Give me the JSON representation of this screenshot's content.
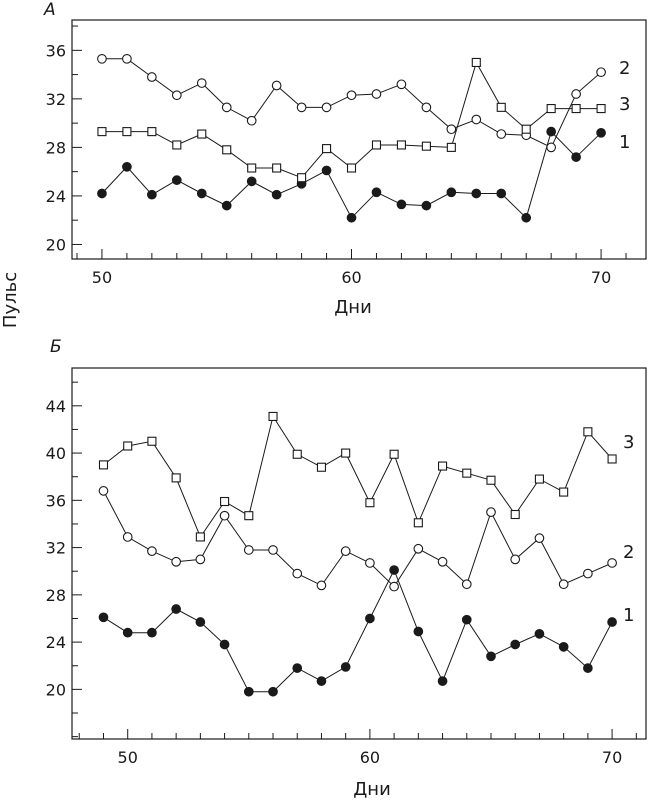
{
  "ylabel": "Пульс",
  "chart_data": [
    {
      "type": "line",
      "panel_label": "А",
      "xlabel": "Дни",
      "x": [
        50,
        51,
        52,
        53,
        54,
        55,
        56,
        57,
        58,
        59,
        60,
        61,
        62,
        63,
        64,
        65,
        66,
        67,
        68,
        69,
        70
      ],
      "xlim": [
        48.8,
        71.8
      ],
      "ylim": [
        18.8,
        38.5
      ],
      "xticks": [
        50,
        60,
        70
      ],
      "yticks": [
        20,
        24,
        28,
        32,
        36
      ],
      "series": [
        {
          "name": "1",
          "marker": "filled-circle",
          "values": [
            24.2,
            26.4,
            24.1,
            25.3,
            24.2,
            23.2,
            25.2,
            24.1,
            25.0,
            26.1,
            22.2,
            24.3,
            23.3,
            23.2,
            24.3,
            24.2,
            24.2,
            22.2,
            29.3,
            27.2,
            29.2
          ]
        },
        {
          "name": "2",
          "marker": "open-circle",
          "values": [
            35.3,
            35.3,
            33.8,
            32.3,
            33.3,
            31.3,
            30.2,
            33.1,
            31.3,
            31.3,
            32.3,
            32.4,
            33.2,
            31.3,
            29.5,
            30.3,
            29.1,
            29.0,
            28.0,
            32.4,
            34.2
          ]
        },
        {
          "name": "3",
          "marker": "open-square",
          "values": [
            29.3,
            29.3,
            29.3,
            28.2,
            29.1,
            27.8,
            26.3,
            26.3,
            25.5,
            27.9,
            26.3,
            28.2,
            28.2,
            28.1,
            28.0,
            35.0,
            31.3,
            29.5,
            31.2,
            31.2,
            31.2
          ]
        }
      ]
    },
    {
      "type": "line",
      "panel_label": "Б",
      "xlabel": "Дни",
      "x": [
        49,
        50,
        51,
        52,
        53,
        54,
        55,
        56,
        57,
        58,
        59,
        60,
        61,
        62,
        63,
        64,
        65,
        66,
        67,
        68,
        69,
        70
      ],
      "xlim": [
        47.7,
        71.4
      ],
      "ylim": [
        15.8,
        47.2
      ],
      "xticks": [
        50,
        60,
        70
      ],
      "yticks": [
        20,
        24,
        28,
        32,
        36,
        40,
        44
      ],
      "series": [
        {
          "name": "1",
          "marker": "filled-circle",
          "values": [
            26.1,
            24.8,
            24.8,
            26.8,
            25.7,
            23.8,
            19.8,
            19.8,
            21.8,
            20.7,
            21.9,
            26.0,
            30.1,
            24.9,
            20.7,
            25.9,
            22.8,
            23.8,
            24.7,
            23.6,
            21.8,
            25.7
          ]
        },
        {
          "name": "2",
          "marker": "open-circle",
          "values": [
            36.8,
            32.9,
            31.7,
            30.8,
            31.0,
            34.7,
            31.8,
            31.8,
            29.8,
            28.8,
            31.7,
            30.7,
            28.7,
            31.9,
            30.8,
            28.9,
            35.0,
            31.0,
            32.8,
            28.9,
            29.8,
            30.7
          ]
        },
        {
          "name": "3",
          "marker": "open-square",
          "values": [
            39.0,
            40.6,
            41.0,
            37.9,
            32.9,
            35.9,
            34.7,
            43.1,
            39.9,
            38.8,
            40.0,
            35.8,
            39.9,
            34.1,
            38.9,
            38.3,
            37.7,
            34.8,
            37.8,
            36.7,
            41.8,
            39.5
          ]
        }
      ]
    }
  ]
}
